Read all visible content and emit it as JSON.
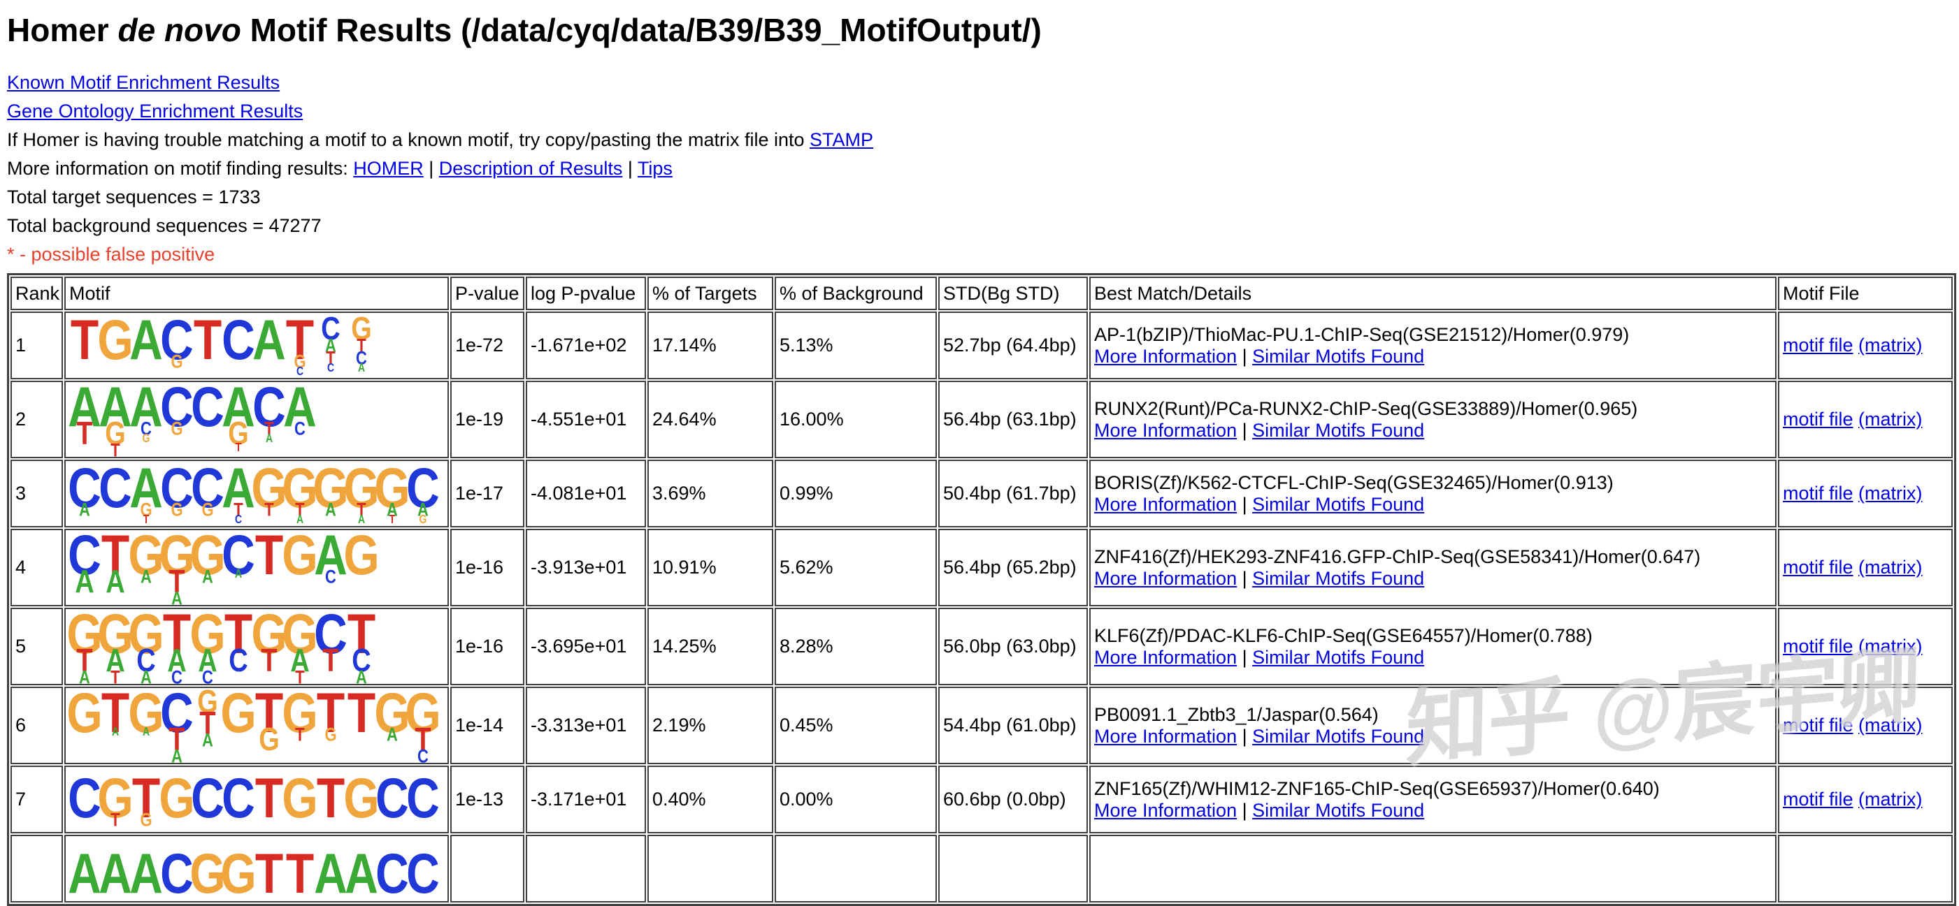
{
  "page": {
    "title": {
      "prefix": "Homer ",
      "italic": "de novo",
      "suffix": " Motif Results (/data/cyq/data/B39/B39_MotifOutput/)"
    },
    "watermark": "知乎 @宸宇卿"
  },
  "top_links": {
    "known": "Known Motif Enrichment Results",
    "gene_ontology": "Gene Ontology Enrichment Results",
    "stamp_line": {
      "text": "If Homer is having trouble matching a motif to a known motif, try copy/pasting the matrix file into ",
      "link": "STAMP"
    },
    "more_info_line": {
      "text": "More information on motif finding results: ",
      "link_homer": "HOMER",
      "sep1": " | ",
      "link_description": "Description of Results",
      "sep2": " | ",
      "link_tips": "Tips"
    }
  },
  "summary": {
    "targets": "Total target sequences = 1733",
    "background": "Total background sequences = 47277",
    "false_positive_note": "* - possible false positive"
  },
  "table": {
    "headers": [
      "Rank",
      "Motif",
      "P-value",
      "log P-pvalue",
      "% of Targets",
      "% of Background",
      "STD(Bg STD)",
      "Best Match/Details",
      "Motif File"
    ],
    "row_links": {
      "more": "More Information",
      "separator": " | ",
      "similar": "Similar Motifs Found"
    },
    "motif_file_links": {
      "file": "motif file",
      "space": " ",
      "matrix": "(matrix)"
    },
    "logo_colors": {
      "A": "#3aaa35",
      "C": "#2038d8",
      "G": "#f0a43c",
      "T": "#d62b22"
    },
    "rows": [
      {
        "rank": "1",
        "logo": [
          "T1",
          "G1",
          "A1",
          "C1G3",
          "T1",
          "C1",
          "A1",
          "T1G3C4",
          "C2A3T3C4",
          "G2T3C3A4"
        ],
        "pvalue": "1e-72",
        "log_pvalue": "-1.671e+02",
        "pct_targets": "17.14%",
        "pct_background": "5.13%",
        "std": "52.7bp (64.4bp)",
        "best_match": "AP-1(bZIP)/ThioMac-PU.1-ChIP-Seq(GSE21512)/Homer(0.979)"
      },
      {
        "rank": "2",
        "logo": [
          "A1T2",
          "A1G2T3",
          "A1C3G4",
          "C1G3",
          "C1",
          "A1G2T4",
          "C1T3A4",
          "A1C3"
        ],
        "pvalue": "1e-19",
        "log_pvalue": "-4.551e+01",
        "pct_targets": "24.64%",
        "pct_background": "16.00%",
        "std": "56.4bp (63.1bp)",
        "best_match": "RUNX2(Runt)/PCa-RUNX2-ChIP-Seq(GSE33889)/Homer(0.965)"
      },
      {
        "rank": "3",
        "logo": [
          "C1A3",
          "C1",
          "A1G3T4",
          "C1G3",
          "C1G3",
          "A1T3C4",
          "G1T3",
          "G1T3A4",
          "G1A3",
          "G1T3A4",
          "G1A3T4",
          "C1A3G4"
        ],
        "pvalue": "1e-17",
        "log_pvalue": "-4.081e+01",
        "pct_targets": "3.69%",
        "pct_background": "0.99%",
        "std": "50.4bp (61.7bp)",
        "best_match": "BORIS(Zf)/K562-CTCFL-ChIP-Seq(GSE32465)/Homer(0.913)"
      },
      {
        "rank": "4",
        "logo": [
          "C1A2",
          "T1A2",
          "G1A3",
          "G1T2A3",
          "G1A3",
          "C1A4",
          "T1",
          "G1",
          "A1C3",
          "G1"
        ],
        "pvalue": "1e-16",
        "log_pvalue": "-3.913e+01",
        "pct_targets": "10.91%",
        "pct_background": "5.62%",
        "std": "56.4bp (65.2bp)",
        "best_match": "ZNF416(Zf)/HEK293-ZNF416.GFP-ChIP-Seq(GSE58341)/Homer(0.647)"
      },
      {
        "rank": "5",
        "logo": [
          "G1T2A3",
          "G1A2T3",
          "G1C2A3",
          "T1A2C3",
          "G1A2C3",
          "T1C2",
          "G1T2",
          "G1A2T3",
          "C1T2",
          "T1C2A3"
        ],
        "pvalue": "1e-16",
        "log_pvalue": "-3.695e+01",
        "pct_targets": "14.25%",
        "pct_background": "8.28%",
        "std": "56.0bp (63.0bp)",
        "best_match": "KLF6(Zf)/PDAC-KLF6-ChIP-Seq(GSE64557)/Homer(0.788)"
      },
      {
        "rank": "6",
        "logo": [
          "G1",
          "T1A4",
          "G1A4",
          "C1T2A3",
          "G2T2A3",
          "G1",
          "T1G2",
          "G1T3",
          "T1G3",
          "T1",
          "G1A3",
          "G1T2C3"
        ],
        "pvalue": "1e-14",
        "log_pvalue": "-3.313e+01",
        "pct_targets": "2.19%",
        "pct_background": "0.45%",
        "std": "54.4bp (61.0bp)",
        "best_match": "PB0091.1_Zbtb3_1/Jaspar(0.564)"
      },
      {
        "rank": "7",
        "logo": [
          "C1",
          "G1T3",
          "T1G3",
          "G1",
          "C1",
          "C1",
          "T1",
          "G1",
          "T1",
          "G1",
          "C1",
          "C1"
        ],
        "pvalue": "1e-13",
        "log_pvalue": "-3.171e+01",
        "pct_targets": "0.40%",
        "pct_background": "0.00%",
        "std": "60.6bp (0.0bp)",
        "best_match": "ZNF165(Zf)/WHIM12-ZNF165-ChIP-Seq(GSE65937)/Homer(0.640)"
      },
      {
        "rank": "",
        "logo": [
          "A1",
          "A1",
          "A1",
          "C1",
          "G1",
          "G1",
          "T1",
          "T1",
          "A1",
          "A1",
          "C1",
          "C1"
        ],
        "pvalue": "",
        "log_pvalue": "",
        "pct_targets": "",
        "pct_background": "",
        "std": "",
        "best_match": ""
      }
    ]
  }
}
